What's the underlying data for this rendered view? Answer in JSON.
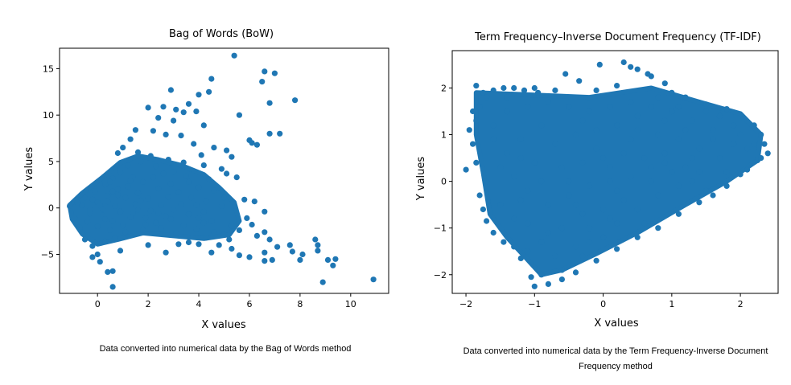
{
  "colors": {
    "points": "#1f77b4",
    "axis": "#000000"
  },
  "chart_data": [
    {
      "type": "scatter",
      "title": "Bag of Words (BoW)",
      "xlabel": "X values",
      "ylabel": "Y values",
      "xlim": [
        -1.5,
        11.5
      ],
      "ylim": [
        -9.2,
        17.2
      ],
      "xticks": [
        0,
        2,
        4,
        6,
        8,
        10
      ],
      "xtick_labels": [
        "0",
        "2",
        "4",
        "6",
        "8",
        "10"
      ],
      "yticks": [
        -5,
        0,
        5,
        10,
        15
      ],
      "ytick_labels": [
        "−5",
        "0",
        "5",
        "10",
        "15"
      ],
      "grid": false,
      "points": [
        [
          5.4,
          16.4
        ],
        [
          6.6,
          14.7
        ],
        [
          7.0,
          14.5
        ],
        [
          4.5,
          13.9
        ],
        [
          6.5,
          13.6
        ],
        [
          2.9,
          12.7
        ],
        [
          4.4,
          12.5
        ],
        [
          4.0,
          12.2
        ],
        [
          7.8,
          11.6
        ],
        [
          6.8,
          11.3
        ],
        [
          3.6,
          11.2
        ],
        [
          2.0,
          10.8
        ],
        [
          2.6,
          10.9
        ],
        [
          3.1,
          10.6
        ],
        [
          3.4,
          10.3
        ],
        [
          5.6,
          10.0
        ],
        [
          3.9,
          10.4
        ],
        [
          3.0,
          9.4
        ],
        [
          2.4,
          9.7
        ],
        [
          4.2,
          8.9
        ],
        [
          6.8,
          8.0
        ],
        [
          7.2,
          8.0
        ],
        [
          6.0,
          7.3
        ],
        [
          6.3,
          6.8
        ],
        [
          6.1,
          7.0
        ],
        [
          5.1,
          6.2
        ],
        [
          4.6,
          6.5
        ],
        [
          5.3,
          5.5
        ],
        [
          4.1,
          5.7
        ],
        [
          3.8,
          6.9
        ],
        [
          3.3,
          7.8
        ],
        [
          2.7,
          7.9
        ],
        [
          2.2,
          8.3
        ],
        [
          1.5,
          8.4
        ],
        [
          1.3,
          7.4
        ],
        [
          1.0,
          6.5
        ],
        [
          0.8,
          5.9
        ],
        [
          1.6,
          6.0
        ],
        [
          2.1,
          5.6
        ],
        [
          2.8,
          5.2
        ],
        [
          3.4,
          4.9
        ],
        [
          4.2,
          4.6
        ],
        [
          4.9,
          4.2
        ],
        [
          5.1,
          3.7
        ],
        [
          5.5,
          3.3
        ],
        [
          4.4,
          3.1
        ],
        [
          3.6,
          2.8
        ],
        [
          4.0,
          2.2
        ],
        [
          4.6,
          1.9
        ],
        [
          5.0,
          1.1
        ],
        [
          5.8,
          0.9
        ],
        [
          6.2,
          0.7
        ],
        [
          6.6,
          -0.4
        ],
        [
          5.9,
          -1.1
        ],
        [
          6.1,
          -1.8
        ],
        [
          6.6,
          -2.6
        ],
        [
          6.3,
          -3.0
        ],
        [
          6.8,
          -3.4
        ],
        [
          7.1,
          -4.2
        ],
        [
          6.6,
          -4.8
        ],
        [
          6.9,
          -5.6
        ],
        [
          6.6,
          -5.7
        ],
        [
          6.0,
          -5.3
        ],
        [
          5.6,
          -5.1
        ],
        [
          5.3,
          -4.4
        ],
        [
          4.8,
          -4.0
        ],
        [
          4.5,
          -4.8
        ],
        [
          4.0,
          -3.9
        ],
        [
          3.6,
          -3.7
        ],
        [
          3.2,
          -3.9
        ],
        [
          2.7,
          -4.8
        ],
        [
          2.0,
          -4.0
        ],
        [
          0.4,
          -6.9
        ],
        [
          0.6,
          -6.8
        ],
        [
          0.1,
          -5.8
        ],
        [
          -0.2,
          -5.3
        ],
        [
          0.0,
          -5.0
        ],
        [
          0.6,
          -8.5
        ],
        [
          7.6,
          -4.0
        ],
        [
          7.7,
          -4.7
        ],
        [
          8.1,
          -5.0
        ],
        [
          8.0,
          -5.6
        ],
        [
          8.6,
          -3.4
        ],
        [
          8.7,
          -4.0
        ],
        [
          8.7,
          -4.6
        ],
        [
          9.1,
          -5.6
        ],
        [
          9.4,
          -5.5
        ],
        [
          9.3,
          -6.2
        ],
        [
          8.9,
          -8.0
        ],
        [
          10.9,
          -7.7
        ],
        [
          1.4,
          -0.6
        ],
        [
          1.9,
          -1.1
        ],
        [
          2.3,
          -1.6
        ],
        [
          2.9,
          -1.2
        ],
        [
          3.4,
          -1.9
        ],
        [
          3.9,
          -2.3
        ],
        [
          4.2,
          -1.6
        ],
        [
          4.6,
          -2.6
        ],
        [
          5.0,
          -2.8
        ],
        [
          3.1,
          -2.7
        ],
        [
          2.5,
          -2.2
        ],
        [
          1.8,
          -2.4
        ],
        [
          1.1,
          -2.6
        ],
        [
          0.7,
          -3.2
        ],
        [
          0.3,
          -3.6
        ],
        [
          -0.2,
          -4.1
        ],
        [
          0.9,
          -4.6
        ],
        [
          -0.5,
          -3.4
        ],
        [
          -0.7,
          -2.1
        ],
        [
          -0.9,
          -1.1
        ],
        [
          -1.1,
          0.2
        ],
        [
          -0.8,
          0.6
        ],
        [
          -0.5,
          1.1
        ],
        [
          -0.1,
          1.8
        ],
        [
          0.3,
          2.5
        ],
        [
          0.6,
          3.2
        ],
        [
          0.9,
          3.8
        ],
        [
          1.2,
          4.6
        ],
        [
          1.7,
          5.0
        ],
        [
          2.3,
          4.5
        ],
        [
          2.6,
          3.7
        ],
        [
          3.0,
          3.9
        ],
        [
          3.5,
          3.4
        ],
        [
          2.9,
          2.6
        ],
        [
          2.4,
          2.1
        ],
        [
          3.2,
          1.7
        ],
        [
          3.7,
          1.1
        ],
        [
          4.3,
          0.7
        ],
        [
          4.9,
          0.2
        ],
        [
          4.2,
          -0.4
        ],
        [
          3.6,
          -0.7
        ],
        [
          3.0,
          -0.2
        ],
        [
          2.5,
          0.3
        ],
        [
          2.0,
          1.0
        ],
        [
          1.6,
          1.6
        ],
        [
          1.2,
          2.3
        ],
        [
          0.8,
          2.0
        ],
        [
          0.4,
          1.3
        ],
        [
          0.0,
          0.6
        ],
        [
          -0.3,
          -0.2
        ],
        [
          0.2,
          -0.8
        ],
        [
          0.6,
          -1.4
        ],
        [
          1.0,
          -1.9
        ],
        [
          0.5,
          -2.4
        ],
        [
          0.0,
          -2.0
        ],
        [
          -0.4,
          -1.5
        ],
        [
          1.5,
          0.4
        ],
        [
          2.1,
          -0.3
        ],
        [
          2.7,
          -0.9
        ],
        [
          1.8,
          2.8
        ],
        [
          2.2,
          3.3
        ],
        [
          1.4,
          3.3
        ],
        [
          1.1,
          1.1
        ],
        [
          0.7,
          0.2
        ],
        [
          0.2,
          -0.1
        ],
        [
          -0.2,
          0.9
        ],
        [
          0.5,
          2.8
        ],
        [
          1.9,
          -1.8
        ],
        [
          3.3,
          0.4
        ],
        [
          4.0,
          -1.1
        ],
        [
          0.9,
          -0.4
        ],
        [
          1.3,
          -1.0
        ],
        [
          1.7,
          0.8
        ],
        [
          2.8,
          1.2
        ],
        [
          3.9,
          0.3
        ],
        [
          4.5,
          -1.4
        ],
        [
          5.3,
          -1.9
        ],
        [
          5.6,
          -2.4
        ],
        [
          5.2,
          -3.4
        ],
        [
          4.3,
          -3.2
        ],
        [
          -0.6,
          0.3
        ],
        [
          -0.3,
          -0.6
        ],
        [
          0.1,
          0.3
        ],
        [
          0.4,
          0.7
        ],
        [
          0.8,
          1.4
        ],
        [
          1.3,
          2.9
        ],
        [
          0.6,
          1.8
        ],
        [
          0.3,
          -1.2
        ],
        [
          1.6,
          -0.2
        ],
        [
          2.4,
          -0.6
        ]
      ]
    },
    {
      "type": "scatter",
      "title": "Term Frequency–Inverse Document Frequency (TF-IDF)",
      "xlabel": "X values",
      "ylabel": "Y values",
      "xlim": [
        -2.2,
        2.55
      ],
      "ylim": [
        -2.4,
        2.8
      ],
      "xticks": [
        -2,
        -1,
        0,
        1,
        2
      ],
      "xtick_labels": [
        "−2",
        "−1",
        "0",
        "1",
        "2"
      ],
      "yticks": [
        -2,
        -1,
        0,
        1,
        2
      ],
      "ytick_labels": [
        "−2",
        "−1",
        "0",
        "1",
        "2"
      ],
      "grid": false,
      "points": [
        [
          -2.0,
          0.25
        ],
        [
          -1.95,
          1.1
        ],
        [
          -1.85,
          2.05
        ],
        [
          -1.75,
          1.9
        ],
        [
          -1.6,
          1.95
        ],
        [
          -1.45,
          2.0
        ],
        [
          -1.3,
          2.0
        ],
        [
          -1.15,
          1.95
        ],
        [
          -1.0,
          2.0
        ],
        [
          -0.95,
          1.9
        ],
        [
          -0.7,
          1.95
        ],
        [
          -0.55,
          2.3
        ],
        [
          -0.35,
          2.15
        ],
        [
          -0.05,
          2.5
        ],
        [
          0.3,
          2.55
        ],
        [
          0.4,
          2.45
        ],
        [
          0.5,
          2.4
        ],
        [
          0.65,
          2.3
        ],
        [
          0.7,
          2.25
        ],
        [
          0.9,
          2.1
        ],
        [
          -0.1,
          1.95
        ],
        [
          0.2,
          2.05
        ],
        [
          1.0,
          1.9
        ],
        [
          1.2,
          1.8
        ],
        [
          1.5,
          1.65
        ],
        [
          1.8,
          1.55
        ],
        [
          2.05,
          1.35
        ],
        [
          2.2,
          1.2
        ],
        [
          2.3,
          1.0
        ],
        [
          2.35,
          0.8
        ],
        [
          2.4,
          0.6
        ],
        [
          2.25,
          0.45
        ],
        [
          2.1,
          0.25
        ],
        [
          2.0,
          0.15
        ],
        [
          1.8,
          -0.1
        ],
        [
          1.6,
          -0.3
        ],
        [
          1.4,
          -0.45
        ],
        [
          1.1,
          -0.7
        ],
        [
          0.8,
          -1.0
        ],
        [
          0.5,
          -1.2
        ],
        [
          0.2,
          -1.45
        ],
        [
          -0.1,
          -1.7
        ],
        [
          -0.4,
          -1.95
        ],
        [
          -0.6,
          -2.1
        ],
        [
          -0.8,
          -2.2
        ],
        [
          -1.0,
          -2.25
        ],
        [
          -1.05,
          -2.05
        ],
        [
          -1.2,
          -1.65
        ],
        [
          -1.3,
          -1.4
        ],
        [
          -1.45,
          -1.3
        ],
        [
          -1.6,
          -1.1
        ],
        [
          -1.7,
          -0.85
        ],
        [
          -1.75,
          -0.6
        ],
        [
          -1.8,
          -0.3
        ],
        [
          -1.7,
          0.0
        ],
        [
          -1.85,
          0.4
        ],
        [
          -1.9,
          0.8
        ],
        [
          -1.85,
          1.3
        ],
        [
          -1.8,
          1.6
        ],
        [
          -1.6,
          1.2
        ],
        [
          -1.4,
          0.6
        ],
        [
          -1.3,
          0.1
        ],
        [
          -1.2,
          -0.4
        ],
        [
          -1.1,
          -0.9
        ],
        [
          -0.9,
          -1.3
        ],
        [
          -0.7,
          -1.6
        ],
        [
          -0.4,
          -1.4
        ],
        [
          -0.2,
          -1.0
        ],
        [
          0.0,
          -0.6
        ],
        [
          0.2,
          -0.9
        ],
        [
          0.5,
          -0.6
        ],
        [
          0.8,
          -0.3
        ],
        [
          1.1,
          -0.1
        ],
        [
          1.4,
          0.2
        ],
        [
          1.7,
          0.5
        ],
        [
          1.9,
          0.8
        ],
        [
          1.6,
          1.1
        ],
        [
          1.3,
          1.3
        ],
        [
          1.0,
          1.5
        ],
        [
          0.7,
          1.6
        ],
        [
          0.4,
          1.7
        ],
        [
          0.1,
          1.6
        ],
        [
          -0.2,
          1.5
        ],
        [
          -0.5,
          1.6
        ],
        [
          -0.8,
          1.7
        ],
        [
          -1.1,
          1.6
        ],
        [
          -1.4,
          1.5
        ],
        [
          -1.6,
          0.9
        ],
        [
          -1.5,
          0.3
        ],
        [
          -1.0,
          0.4
        ],
        [
          -0.7,
          0.8
        ],
        [
          -0.4,
          1.0
        ],
        [
          -0.1,
          1.1
        ],
        [
          0.2,
          1.2
        ],
        [
          0.5,
          1.1
        ],
        [
          0.8,
          1.0
        ],
        [
          1.1,
          0.9
        ],
        [
          1.4,
          0.7
        ],
        [
          1.2,
          0.3
        ],
        [
          0.9,
          0.4
        ],
        [
          0.6,
          0.5
        ],
        [
          0.3,
          0.6
        ],
        [
          0.0,
          0.5
        ],
        [
          -0.3,
          0.4
        ],
        [
          -0.6,
          0.3
        ],
        [
          -0.9,
          0.0
        ],
        [
          -0.8,
          -0.5
        ],
        [
          -0.5,
          -0.3
        ],
        [
          -0.2,
          -0.1
        ],
        [
          0.1,
          0.0
        ],
        [
          0.4,
          0.1
        ],
        [
          0.7,
          0.0
        ],
        [
          1.0,
          0.2
        ],
        [
          1.3,
          0.5
        ],
        [
          1.6,
          0.9
        ],
        [
          2.0,
          1.0
        ],
        [
          2.1,
          0.7
        ],
        [
          1.9,
          1.2
        ],
        [
          1.7,
          1.4
        ],
        [
          1.5,
          1.5
        ],
        [
          0.6,
          -0.9
        ],
        [
          0.3,
          -0.4
        ],
        [
          0.0,
          -1.2
        ],
        [
          -0.3,
          -1.6
        ],
        [
          -0.6,
          -1.0
        ],
        [
          -0.3,
          -0.7
        ],
        [
          0.2,
          -0.2
        ],
        [
          0.9,
          0.6
        ],
        [
          1.2,
          1.1
        ],
        [
          0.5,
          1.4
        ],
        [
          -0.3,
          1.3
        ],
        [
          -0.9,
          1.2
        ],
        [
          -1.2,
          0.9
        ],
        [
          -1.4,
          1.8
        ],
        [
          -1.7,
          1.8
        ],
        [
          -1.9,
          1.5
        ],
        [
          -1.1,
          -0.2
        ],
        [
          -1.3,
          -0.8
        ],
        [
          -1.5,
          -0.5
        ],
        [
          -1.2,
          0.5
        ],
        [
          -0.5,
          0.0
        ],
        [
          0.1,
          0.3
        ],
        [
          0.7,
          0.3
        ],
        [
          1.3,
          0.0
        ],
        [
          1.5,
          -0.2
        ],
        [
          1.8,
          0.2
        ],
        [
          2.2,
          0.8
        ],
        [
          2.3,
          0.5
        ],
        [
          1.1,
          1.6
        ],
        [
          0.8,
          1.8
        ],
        [
          -0.6,
          -1.9
        ],
        [
          -0.9,
          -2.0
        ],
        [
          -1.1,
          -1.5
        ],
        [
          -0.8,
          -1.1
        ],
        [
          -0.4,
          -0.5
        ],
        [
          -0.1,
          0.7
        ],
        [
          0.4,
          0.9
        ],
        [
          0.9,
          1.3
        ],
        [
          -0.2,
          -1.3
        ],
        [
          0.1,
          -0.8
        ]
      ]
    }
  ],
  "captions": [
    "Data converted into numerical data by the Bag of Words method",
    "Data converted into numerical data by the Term Frequency-Inverse Document Frequency method"
  ]
}
